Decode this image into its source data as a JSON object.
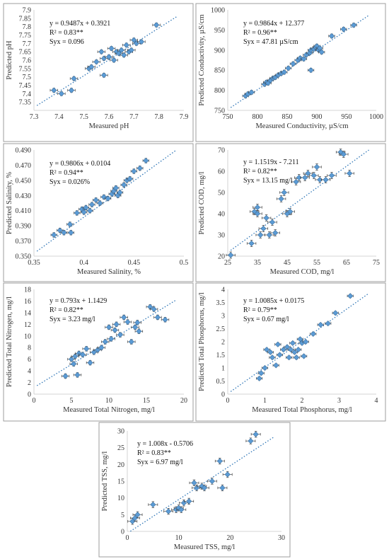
{
  "chart_data": [
    {
      "type": "scatter",
      "title": "",
      "xlabel": "Measured pH",
      "ylabel": "Predicted pH",
      "xlim": [
        7.3,
        7.9
      ],
      "ylim": [
        7.3,
        7.9
      ],
      "xticks": [
        "7.3",
        "7.4",
        "7.5",
        "7.6",
        "7.7",
        "7.8",
        "7.9"
      ],
      "yticks": [
        "7.35",
        "7.4",
        "7.45",
        "7.5",
        "7.55",
        "7.6",
        "7.65",
        "7.7",
        "7.75",
        "7.8",
        "7.85",
        "7.9"
      ],
      "annotations": [
        "y = 0.9487x + 0.3921",
        "R² = 0.83**",
        "Syx = 0.096"
      ],
      "trendline": {
        "slope": 0.9487,
        "intercept": 0.3921
      },
      "error_x": 0.015,
      "error_y": 0.012,
      "points": [
        [
          7.38,
          7.42
        ],
        [
          7.41,
          7.4
        ],
        [
          7.45,
          7.42
        ],
        [
          7.46,
          7.49
        ],
        [
          7.52,
          7.55
        ],
        [
          7.53,
          7.56
        ],
        [
          7.55,
          7.59
        ],
        [
          7.57,
          7.65
        ],
        [
          7.58,
          7.61
        ],
        [
          7.58,
          7.51
        ],
        [
          7.6,
          7.62
        ],
        [
          7.61,
          7.67
        ],
        [
          7.62,
          7.6
        ],
        [
          7.63,
          7.65
        ],
        [
          7.64,
          7.64
        ],
        [
          7.65,
          7.66
        ],
        [
          7.66,
          7.63
        ],
        [
          7.67,
          7.69
        ],
        [
          7.68,
          7.65
        ],
        [
          7.69,
          7.66
        ],
        [
          7.7,
          7.72
        ],
        [
          7.71,
          7.7
        ],
        [
          7.73,
          7.71
        ],
        [
          7.79,
          7.81
        ]
      ]
    },
    {
      "type": "scatter",
      "title": "",
      "xlabel": "Measured Conductivity, µS/cm",
      "ylabel": "Predicted Conductivity, µS/cm",
      "xlim": [
        750,
        1000
      ],
      "ylim": [
        750,
        1000
      ],
      "xticks": [
        "750",
        "800",
        "850",
        "900",
        "950",
        "1000"
      ],
      "yticks": [
        "750",
        "800",
        "850",
        "900",
        "950",
        "1000"
      ],
      "annotations": [
        "y = 0.9864x + 12.377",
        "R² = 0.96**",
        "Syx = 47.81 µS/cm"
      ],
      "trendline": {
        "slope": 0.9864,
        "intercept": 12.377
      },
      "error_x": 5,
      "error_y": 5,
      "points": [
        [
          780,
          786
        ],
        [
          784,
          791
        ],
        [
          790,
          795
        ],
        [
          812,
          815
        ],
        [
          815,
          820
        ],
        [
          818,
          818
        ],
        [
          822,
          825
        ],
        [
          826,
          830
        ],
        [
          830,
          832
        ],
        [
          835,
          838
        ],
        [
          840,
          842
        ],
        [
          845,
          845
        ],
        [
          852,
          855
        ],
        [
          860,
          866
        ],
        [
          868,
          875
        ],
        [
          872,
          880
        ],
        [
          878,
          878
        ],
        [
          882,
          888
        ],
        [
          888,
          893
        ],
        [
          890,
          900
        ],
        [
          895,
          903
        ],
        [
          898,
          907
        ],
        [
          900,
          910
        ],
        [
          903,
          900
        ],
        [
          905,
          905
        ],
        [
          908,
          895
        ],
        [
          890,
          850
        ],
        [
          925,
          935
        ],
        [
          945,
          952
        ],
        [
          962,
          962
        ]
      ]
    },
    {
      "type": "scatter",
      "title": "",
      "xlabel": "Measured Salinity, %",
      "ylabel": "Predicted Salinity, %",
      "xlim": [
        0.35,
        0.5
      ],
      "ylim": [
        0.35,
        0.49
      ],
      "xticks": [
        "0.35",
        "0.4",
        "0.45",
        "0.5"
      ],
      "yticks": [
        "0.350",
        "0.370",
        "0.390",
        "0.410",
        "0.430",
        "0.450",
        "0.470",
        "0.490"
      ],
      "annotations": [
        "y = 0.9806x + 0.0104",
        "R² = 0.94**",
        "Syx = 0.026%"
      ],
      "trendline": {
        "slope": 0.9806,
        "intercept": 0.0104
      },
      "error_x": 0.003,
      "error_y": 0.003,
      "points": [
        [
          0.37,
          0.378
        ],
        [
          0.376,
          0.384
        ],
        [
          0.38,
          0.381
        ],
        [
          0.386,
          0.392
        ],
        [
          0.387,
          0.381
        ],
        [
          0.393,
          0.407
        ],
        [
          0.398,
          0.412
        ],
        [
          0.4,
          0.408
        ],
        [
          0.402,
          0.414
        ],
        [
          0.406,
          0.41
        ],
        [
          0.408,
          0.418
        ],
        [
          0.412,
          0.424
        ],
        [
          0.416,
          0.42
        ],
        [
          0.42,
          0.428
        ],
        [
          0.424,
          0.426
        ],
        [
          0.428,
          0.432
        ],
        [
          0.43,
          0.436
        ],
        [
          0.432,
          0.44
        ],
        [
          0.434,
          0.43
        ],
        [
          0.436,
          0.434
        ],
        [
          0.44,
          0.444
        ],
        [
          0.443,
          0.45
        ],
        [
          0.446,
          0.452
        ],
        [
          0.45,
          0.462
        ],
        [
          0.456,
          0.466
        ],
        [
          0.462,
          0.476
        ]
      ]
    },
    {
      "type": "scatter",
      "title": "",
      "xlabel": "Measured COD, mg/l",
      "ylabel": "Predicted COD, mg/l",
      "xlim": [
        25,
        75
      ],
      "ylim": [
        20,
        70
      ],
      "xticks": [
        "25",
        "35",
        "45",
        "55",
        "65",
        "75"
      ],
      "yticks": [
        "20",
        "30",
        "40",
        "50",
        "60",
        "70"
      ],
      "annotations": [
        "y = 1.1519x - 7.211",
        "R² = 0.82**",
        "Syx = 13.15 mg/l"
      ],
      "trendline": {
        "slope": 1.1519,
        "intercept": -7.211
      },
      "error_x": 1.5,
      "error_y": 1.5,
      "points": [
        [
          26,
          20.5
        ],
        [
          33,
          26
        ],
        [
          34,
          41
        ],
        [
          35,
          43
        ],
        [
          35,
          40
        ],
        [
          36,
          30
        ],
        [
          37,
          33
        ],
        [
          38,
          38
        ],
        [
          39,
          30
        ],
        [
          40,
          36
        ],
        [
          41,
          31
        ],
        [
          43,
          47
        ],
        [
          44,
          50
        ],
        [
          45,
          40
        ],
        [
          46,
          41
        ],
        [
          48,
          55
        ],
        [
          49,
          57
        ],
        [
          51,
          57
        ],
        [
          52,
          59
        ],
        [
          54,
          58
        ],
        [
          55,
          62
        ],
        [
          56,
          56
        ],
        [
          58,
          56
        ],
        [
          60,
          58
        ],
        [
          63,
          69
        ],
        [
          64,
          68
        ],
        [
          66,
          59
        ]
      ]
    },
    {
      "type": "scatter",
      "title": "",
      "xlabel": "Measured Total Nitrogen, mg/l",
      "ylabel": "Predicted Total Nitrogen, mg/l",
      "xlim": [
        0,
        20
      ],
      "ylim": [
        0,
        18
      ],
      "xticks": [
        "0",
        "5",
        "10",
        "15",
        "20"
      ],
      "yticks": [
        "0",
        "2",
        "4",
        "6",
        "8",
        "10",
        "12",
        "14",
        "16",
        "18"
      ],
      "annotations": [
        "y = 0.793x + 1.1429",
        "R² = 0.82**",
        "Syx = 3.23 mg/l"
      ],
      "trendline": {
        "slope": 0.793,
        "intercept": 1.1429
      },
      "error_x": 0.5,
      "error_y": 0.4,
      "points": [
        [
          4.2,
          3.1
        ],
        [
          5.0,
          6.0
        ],
        [
          5.3,
          5.2
        ],
        [
          5.5,
          6.5
        ],
        [
          5.8,
          3.3
        ],
        [
          6.0,
          7.0
        ],
        [
          6.5,
          6.8
        ],
        [
          7.0,
          7.8
        ],
        [
          7.5,
          5.4
        ],
        [
          8.0,
          7.2
        ],
        [
          8.5,
          7.6
        ],
        [
          9.0,
          8.0
        ],
        [
          9.5,
          9.0
        ],
        [
          10.0,
          11.5
        ],
        [
          10.3,
          9.5
        ],
        [
          10.8,
          11.0
        ],
        [
          11.0,
          12.0
        ],
        [
          11.5,
          10.2
        ],
        [
          12.0,
          13.2
        ],
        [
          12.5,
          12.4
        ],
        [
          13.0,
          9.0
        ],
        [
          13.5,
          11.5
        ],
        [
          13.8,
          12.3
        ],
        [
          14.0,
          10.8
        ],
        [
          15.5,
          15.0
        ],
        [
          16.0,
          14.6
        ],
        [
          16.5,
          13.2
        ],
        [
          17.5,
          12.8
        ]
      ]
    },
    {
      "type": "scatter",
      "title": "",
      "xlabel": "Measured Total Phosphorus, mg/l",
      "ylabel": "Predicted Total Phosphorus, mg/l",
      "xlim": [
        0,
        4
      ],
      "ylim": [
        0,
        4
      ],
      "xticks": [
        "0",
        "1",
        "2",
        "3",
        "4"
      ],
      "yticks": [
        "0",
        "0.5",
        "1",
        "1.5",
        "2",
        "2.5",
        "3",
        "3.5",
        "4"
      ],
      "annotations": [
        "y = 1.0085x + 0.0175",
        "R² = 0.79**",
        "Syx = 0.67 mg/l"
      ],
      "trendline": {
        "slope": 1.0085,
        "intercept": 0.0175
      },
      "error_x": 0.08,
      "error_y": 0.06,
      "points": [
        [
          0.85,
          0.6
        ],
        [
          0.9,
          0.8
        ],
        [
          1.0,
          1.0
        ],
        [
          1.05,
          1.7
        ],
        [
          1.15,
          1.6
        ],
        [
          1.2,
          1.4
        ],
        [
          1.3,
          1.1
        ],
        [
          1.35,
          1.9
        ],
        [
          1.4,
          1.5
        ],
        [
          1.5,
          1.7
        ],
        [
          1.6,
          1.8
        ],
        [
          1.65,
          1.4
        ],
        [
          1.7,
          1.7
        ],
        [
          1.75,
          1.95
        ],
        [
          1.8,
          1.6
        ],
        [
          1.85,
          1.4
        ],
        [
          1.9,
          1.7
        ],
        [
          1.95,
          2.1
        ],
        [
          2.0,
          1.95
        ],
        [
          2.05,
          1.45
        ],
        [
          2.1,
          2.0
        ],
        [
          2.3,
          2.3
        ],
        [
          2.5,
          2.65
        ],
        [
          2.7,
          2.7
        ],
        [
          2.9,
          3.1
        ],
        [
          3.3,
          3.75
        ]
      ]
    },
    {
      "type": "scatter",
      "title": "",
      "xlabel": "Measured TSS, mg/l",
      "ylabel": "Predicted TSS, mg/l",
      "xlim": [
        0,
        30
      ],
      "ylim": [
        0,
        30
      ],
      "xticks": [
        "0",
        "10",
        "20",
        "30"
      ],
      "yticks": [
        "0",
        "5",
        "10",
        "15",
        "20",
        "25",
        "30"
      ],
      "annotations": [
        "y = 1.008x - 0.5706",
        "R² = 0.83**",
        "Syx = 6.97 mg/l"
      ],
      "trendline": {
        "slope": 1.008,
        "intercept": -0.5706
      },
      "error_x": 0.9,
      "error_y": 0.9,
      "points": [
        [
          1,
          3
        ],
        [
          1.5,
          4
        ],
        [
          2,
          5
        ],
        [
          5,
          8
        ],
        [
          8,
          6
        ],
        [
          9.5,
          6.5
        ],
        [
          10,
          7
        ],
        [
          10.5,
          6.5
        ],
        [
          11,
          8.5
        ],
        [
          12,
          9
        ],
        [
          13,
          14.5
        ],
        [
          13.5,
          13
        ],
        [
          14.5,
          13.5
        ],
        [
          15,
          13
        ],
        [
          16.5,
          15
        ],
        [
          18,
          21
        ],
        [
          18.5,
          13
        ],
        [
          19.5,
          17
        ],
        [
          24,
          27
        ],
        [
          25,
          29
        ]
      ]
    }
  ]
}
